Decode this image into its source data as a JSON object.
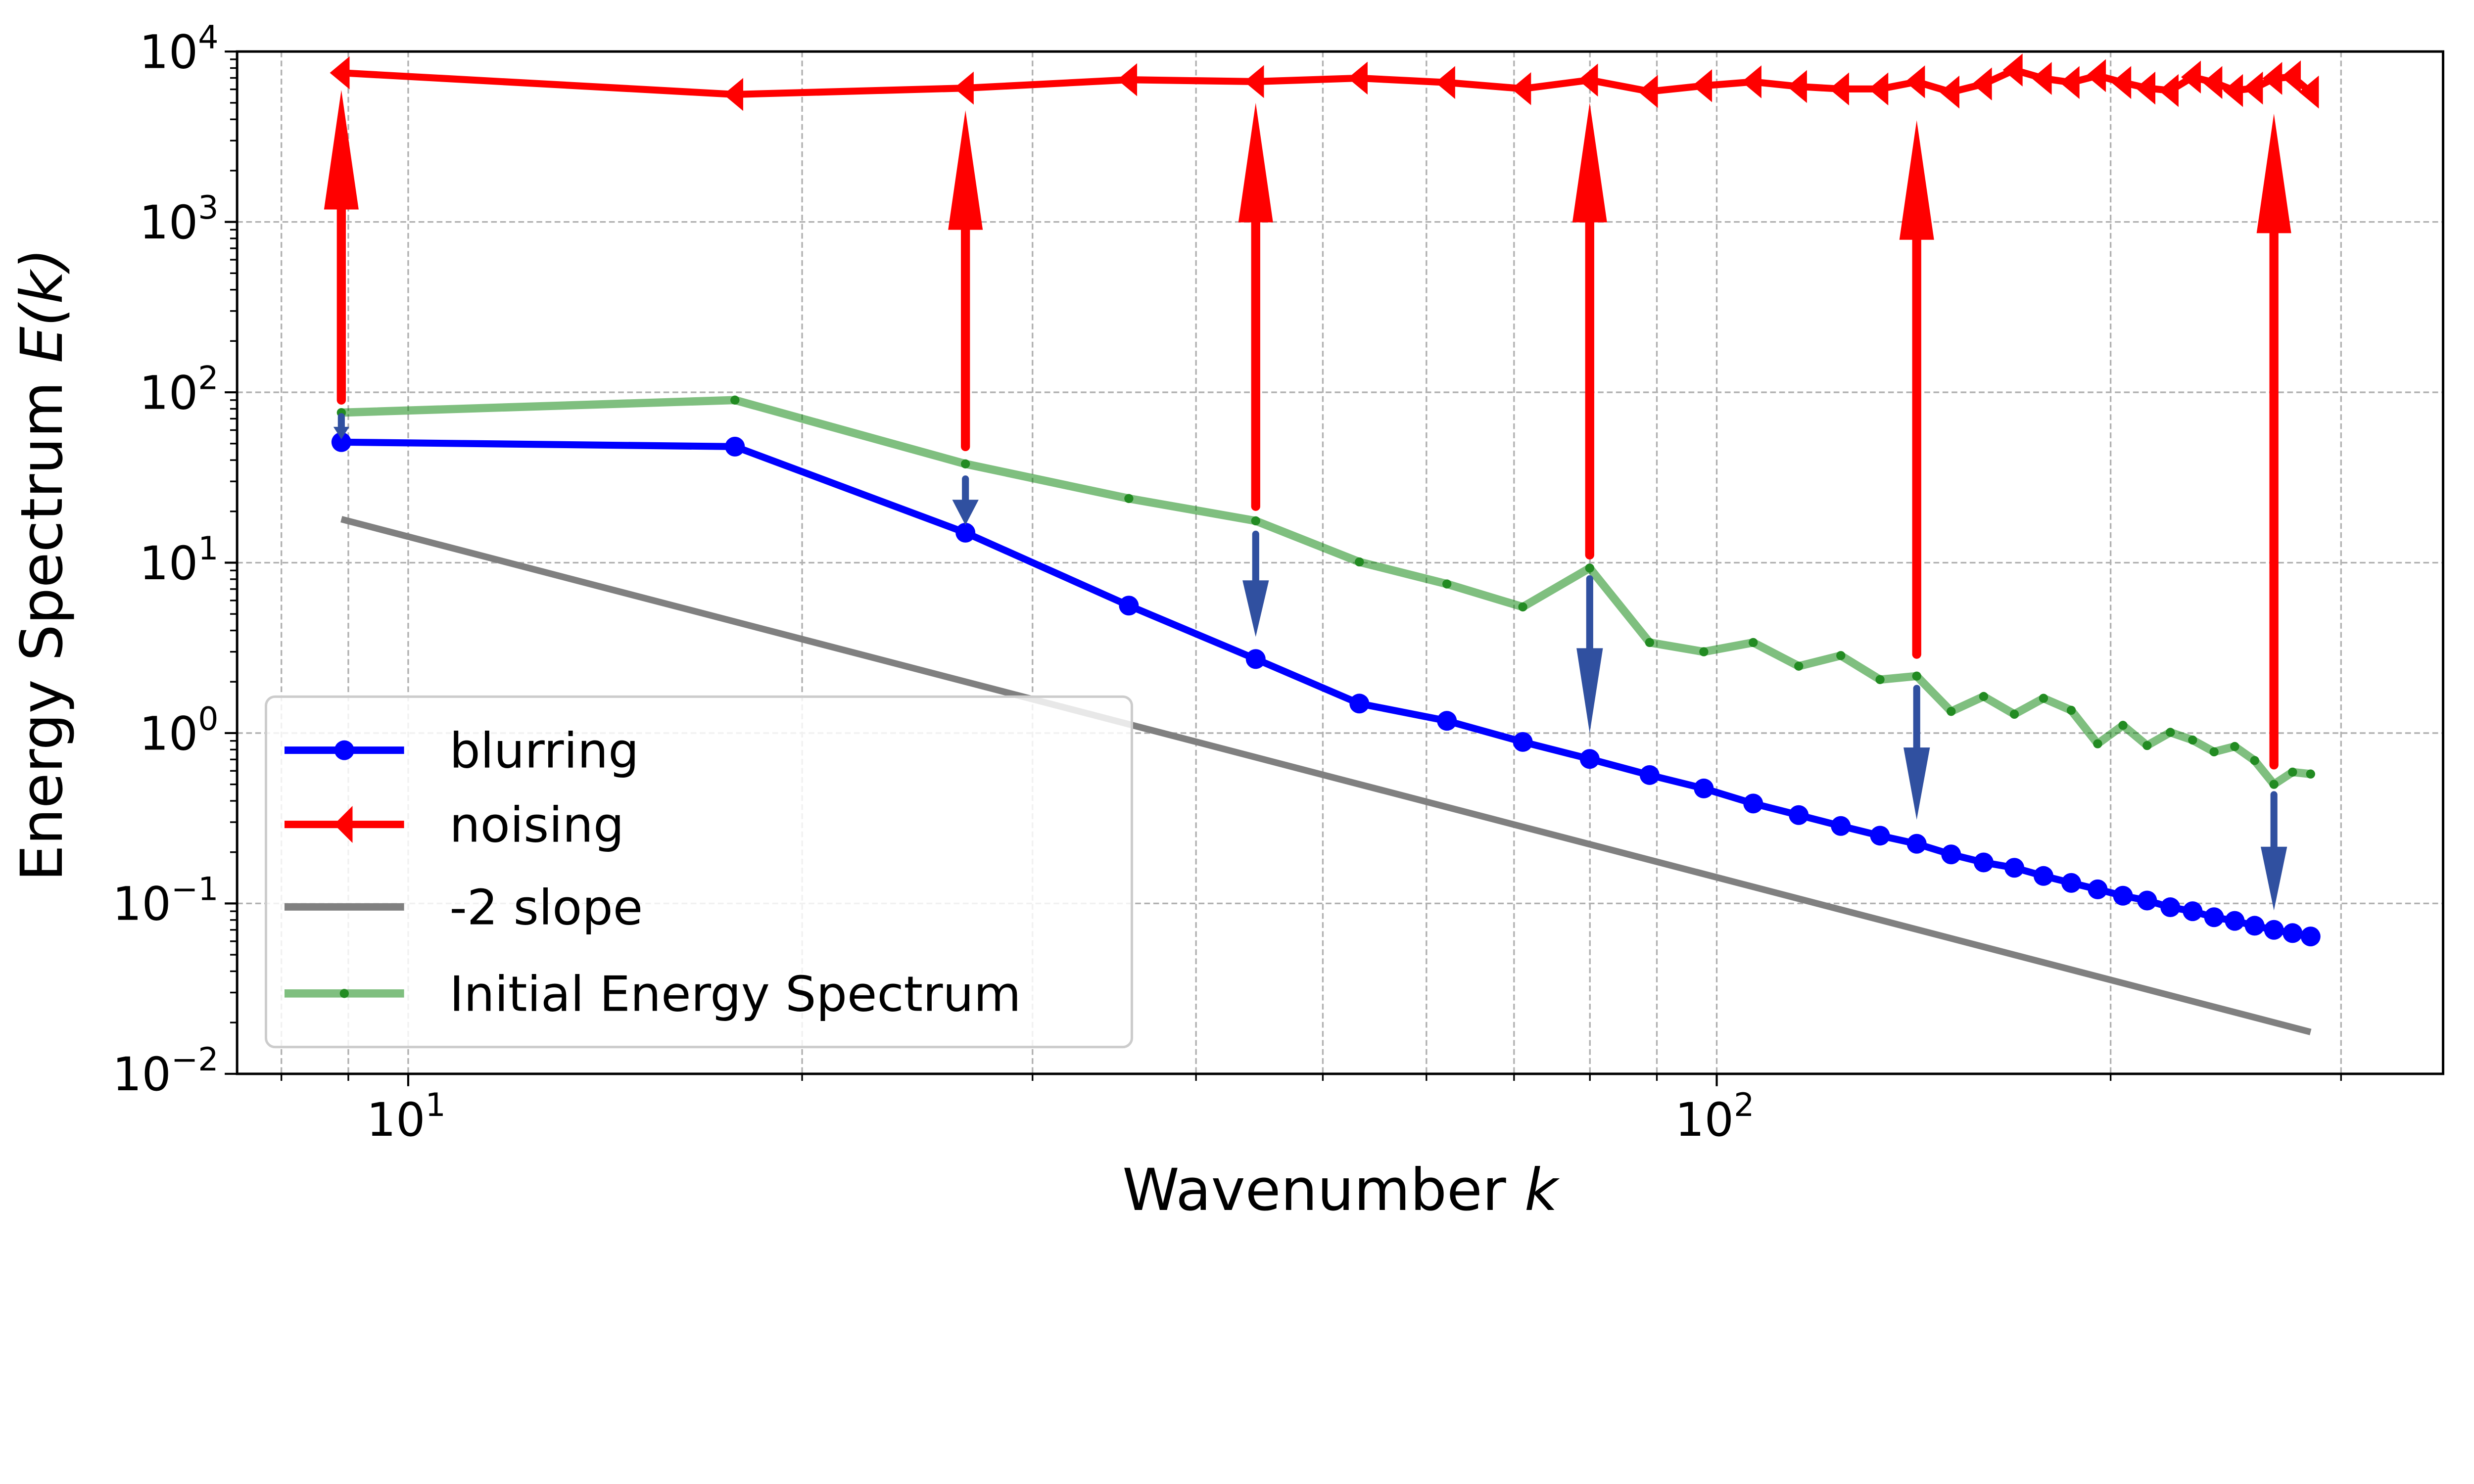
{
  "chart_data": {
    "type": "line",
    "xscale": "log",
    "yscale": "log",
    "xlim": [
      7.4,
      359
    ],
    "ylim": [
      0.01,
      10000
    ],
    "grid": true,
    "legend_position": "lower-left",
    "xlabel_text": "Wavenumber",
    "xlabel_var": "k",
    "ylabel_text": "Energy Spectrum",
    "ylabel_var": "E(k)",
    "x_ticks": [
      {
        "base": "10",
        "exp": "1",
        "value": 10
      },
      {
        "base": "10",
        "exp": "2",
        "value": 100
      }
    ],
    "y_ticks": [
      {
        "base": "10",
        "exp": "−2",
        "value": 0.01
      },
      {
        "base": "10",
        "exp": "−1",
        "value": 0.1
      },
      {
        "base": "10",
        "exp": "0",
        "value": 1
      },
      {
        "base": "10",
        "exp": "1",
        "value": 10
      },
      {
        "base": "10",
        "exp": "2",
        "value": 100
      },
      {
        "base": "10",
        "exp": "3",
        "value": 1000
      },
      {
        "base": "10",
        "exp": "4",
        "value": 10000
      }
    ],
    "x": [
      8.89,
      17.77,
      26.66,
      35.54,
      44.43,
      53.32,
      62.2,
      71.09,
      79.97,
      88.86,
      97.75,
      106.63,
      115.52,
      124.4,
      133.29,
      142.18,
      151.06,
      159.95,
      168.83,
      177.72,
      186.61,
      195.49,
      204.38,
      213.26,
      222.15,
      231.04,
      239.92,
      248.81,
      257.69,
      266.58,
      275.47,
      284.35
    ],
    "series": [
      {
        "name": "blurring",
        "color": "#0000ff",
        "marker": "circle",
        "values": [
          51,
          48,
          15,
          5.6,
          2.72,
          1.49,
          1.18,
          0.887,
          0.705,
          0.567,
          0.473,
          0.386,
          0.33,
          0.285,
          0.25,
          0.224,
          0.194,
          0.174,
          0.162,
          0.145,
          0.132,
          0.121,
          0.111,
          0.104,
          0.095,
          0.09,
          0.083,
          0.079,
          0.074,
          0.07,
          0.067,
          0.064
        ]
      },
      {
        "name": "noising",
        "color": "#ff0000",
        "marker": "triangle-left",
        "values": [
          7500,
          5600,
          6100,
          6830,
          6660,
          6980,
          6580,
          6050,
          6800,
          5830,
          6300,
          6640,
          6230,
          6030,
          6030,
          6640,
          5780,
          6450,
          7790,
          6950,
          6580,
          7220,
          6580,
          6100,
          5900,
          7080,
          6580,
          5900,
          6100,
          6950,
          7100,
          5780
        ]
      },
      {
        "name": "-2 slope",
        "color": "#808080",
        "marker": "none",
        "x": [
          8.89,
          284.35
        ],
        "values": [
          18,
          0.0176
        ]
      },
      {
        "name": "Initial Energy Spectrum",
        "color": "#008000",
        "marker": "dot",
        "values": [
          76,
          90,
          38,
          23.8,
          17.6,
          10.1,
          7.5,
          5.5,
          9.3,
          3.4,
          3.0,
          3.4,
          2.47,
          2.85,
          2.06,
          2.16,
          1.34,
          1.64,
          1.29,
          1.6,
          1.36,
          0.865,
          1.11,
          0.845,
          1.01,
          0.91,
          0.776,
          0.834,
          0.69,
          0.5,
          0.59,
          0.575
        ]
      }
    ],
    "annotations": {
      "noising_arrows": {
        "color": "#ff0000",
        "items": [
          {
            "k": 8.89,
            "from": 90,
            "to": 5950
          },
          {
            "k": 26.66,
            "from": 48,
            "to": 4520
          },
          {
            "k": 44.43,
            "from": 21.4,
            "to": 5000
          },
          {
            "k": 79.97,
            "from": 11.1,
            "to": 5000
          },
          {
            "k": 142.18,
            "from": 2.9,
            "to": 3950
          },
          {
            "k": 266.58,
            "from": 0.65,
            "to": 4320
          }
        ]
      },
      "blurring_arrows": {
        "color": "#3050a0",
        "items": [
          {
            "k": 8.89,
            "from": 72,
            "to": 53
          },
          {
            "k": 26.66,
            "from": 31,
            "to": 16.6
          },
          {
            "k": 44.43,
            "from": 14.7,
            "to": 3.67
          },
          {
            "k": 79.97,
            "from": 8.05,
            "to": 1.0
          },
          {
            "k": 142.18,
            "from": 1.83,
            "to": 0.31
          },
          {
            "k": 266.58,
            "from": 0.435,
            "to": 0.091
          }
        ]
      }
    }
  }
}
